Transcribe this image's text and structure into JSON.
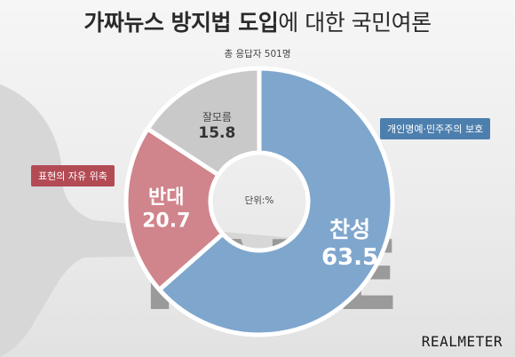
{
  "title": {
    "bold": "가짜뉴스 방지법 도입",
    "rest": "에 대한 국민여론"
  },
  "total_respondents": "총 응답자 501명",
  "unit_label": "단위:%",
  "tags": {
    "oppose_reason": "표현의 자유 위축",
    "support_reason": "개인명예·민주주의 보호"
  },
  "background_text": "FAKE",
  "brand": "REALMETER",
  "colors": {
    "support": "#7fa6cd",
    "oppose": "#d0848b",
    "unknown": "#c9c9c9"
  },
  "chart_data": {
    "type": "pie",
    "donut": true,
    "unit": "%",
    "slices": [
      {
        "label": "찬성",
        "value": 63.5,
        "color": "#7fa6cd"
      },
      {
        "label": "반대",
        "value": 20.7,
        "color": "#d0848b"
      },
      {
        "label": "잘모름",
        "value": 15.8,
        "color": "#c9c9c9"
      }
    ]
  }
}
